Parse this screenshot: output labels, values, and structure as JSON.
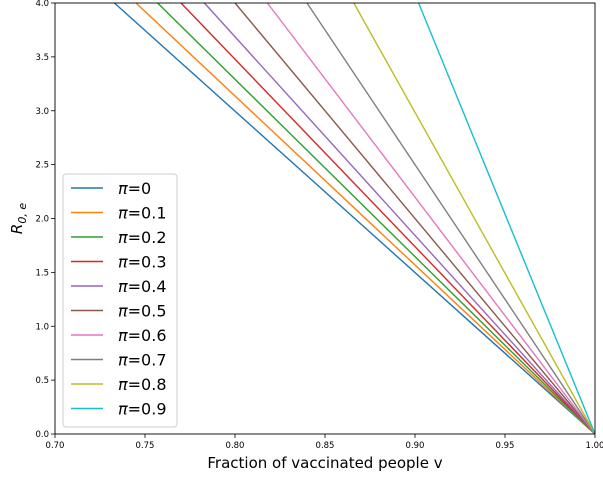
{
  "chart_data": {
    "type": "line",
    "xlabel": "Fraction of vaccinated people v",
    "ylabel_main": "R",
    "ylabel_sub": "0, e",
    "xlim": [
      0.7,
      1.0
    ],
    "ylim": [
      0.0,
      4.0
    ],
    "x_ticks": [
      0.7,
      0.75,
      0.8,
      0.85,
      0.9,
      0.95,
      1.0
    ],
    "x_tick_labels": [
      "0.70",
      "0.75",
      "0.80",
      "0.85",
      "0.90",
      "0.95",
      "1.00"
    ],
    "y_ticks": [
      0.0,
      0.5,
      1.0,
      1.5,
      2.0,
      2.5,
      3.0,
      3.5,
      4.0
    ],
    "y_tick_labels": [
      "0.0",
      "0.5",
      "1.0",
      "1.5",
      "2.0",
      "2.5",
      "3.0",
      "3.5",
      "4.0"
    ],
    "grid": false,
    "legend_position": "lower-left",
    "legend_symbol": "π",
    "series": [
      {
        "name": "π=0",
        "pi_label": "=0",
        "color": "#1f77b4",
        "x": [
          0.733,
          1.0
        ],
        "y": [
          4.0,
          0.0
        ]
      },
      {
        "name": "π=0.1",
        "pi_label": "=0.1",
        "color": "#ff7f0e",
        "x": [
          0.745,
          1.0
        ],
        "y": [
          4.0,
          0.0
        ]
      },
      {
        "name": "π=0.2",
        "pi_label": "=0.2",
        "color": "#2ca02c",
        "x": [
          0.757,
          1.0
        ],
        "y": [
          4.0,
          0.0
        ]
      },
      {
        "name": "π=0.3",
        "pi_label": "=0.3",
        "color": "#d62728",
        "x": [
          0.77,
          1.0
        ],
        "y": [
          4.0,
          0.0
        ]
      },
      {
        "name": "π=0.4",
        "pi_label": "=0.4",
        "color": "#9467bd",
        "x": [
          0.783,
          1.0
        ],
        "y": [
          4.0,
          0.0
        ]
      },
      {
        "name": "π=0.5",
        "pi_label": "=0.5",
        "color": "#8c564b",
        "x": [
          0.8,
          1.0
        ],
        "y": [
          4.0,
          0.0
        ]
      },
      {
        "name": "π=0.6",
        "pi_label": "=0.6",
        "color": "#e377c2",
        "x": [
          0.818,
          1.0
        ],
        "y": [
          4.0,
          0.0
        ]
      },
      {
        "name": "π=0.7",
        "pi_label": "=0.7",
        "color": "#7f7f7f",
        "x": [
          0.84,
          1.0
        ],
        "y": [
          4.0,
          0.0
        ]
      },
      {
        "name": "π=0.8",
        "pi_label": "=0.8",
        "color": "#bcbd22",
        "x": [
          0.866,
          1.0
        ],
        "y": [
          4.0,
          0.0
        ]
      },
      {
        "name": "π=0.9",
        "pi_label": "=0.9",
        "color": "#17becf",
        "x": [
          0.902,
          1.0
        ],
        "y": [
          4.0,
          0.0
        ]
      }
    ]
  }
}
